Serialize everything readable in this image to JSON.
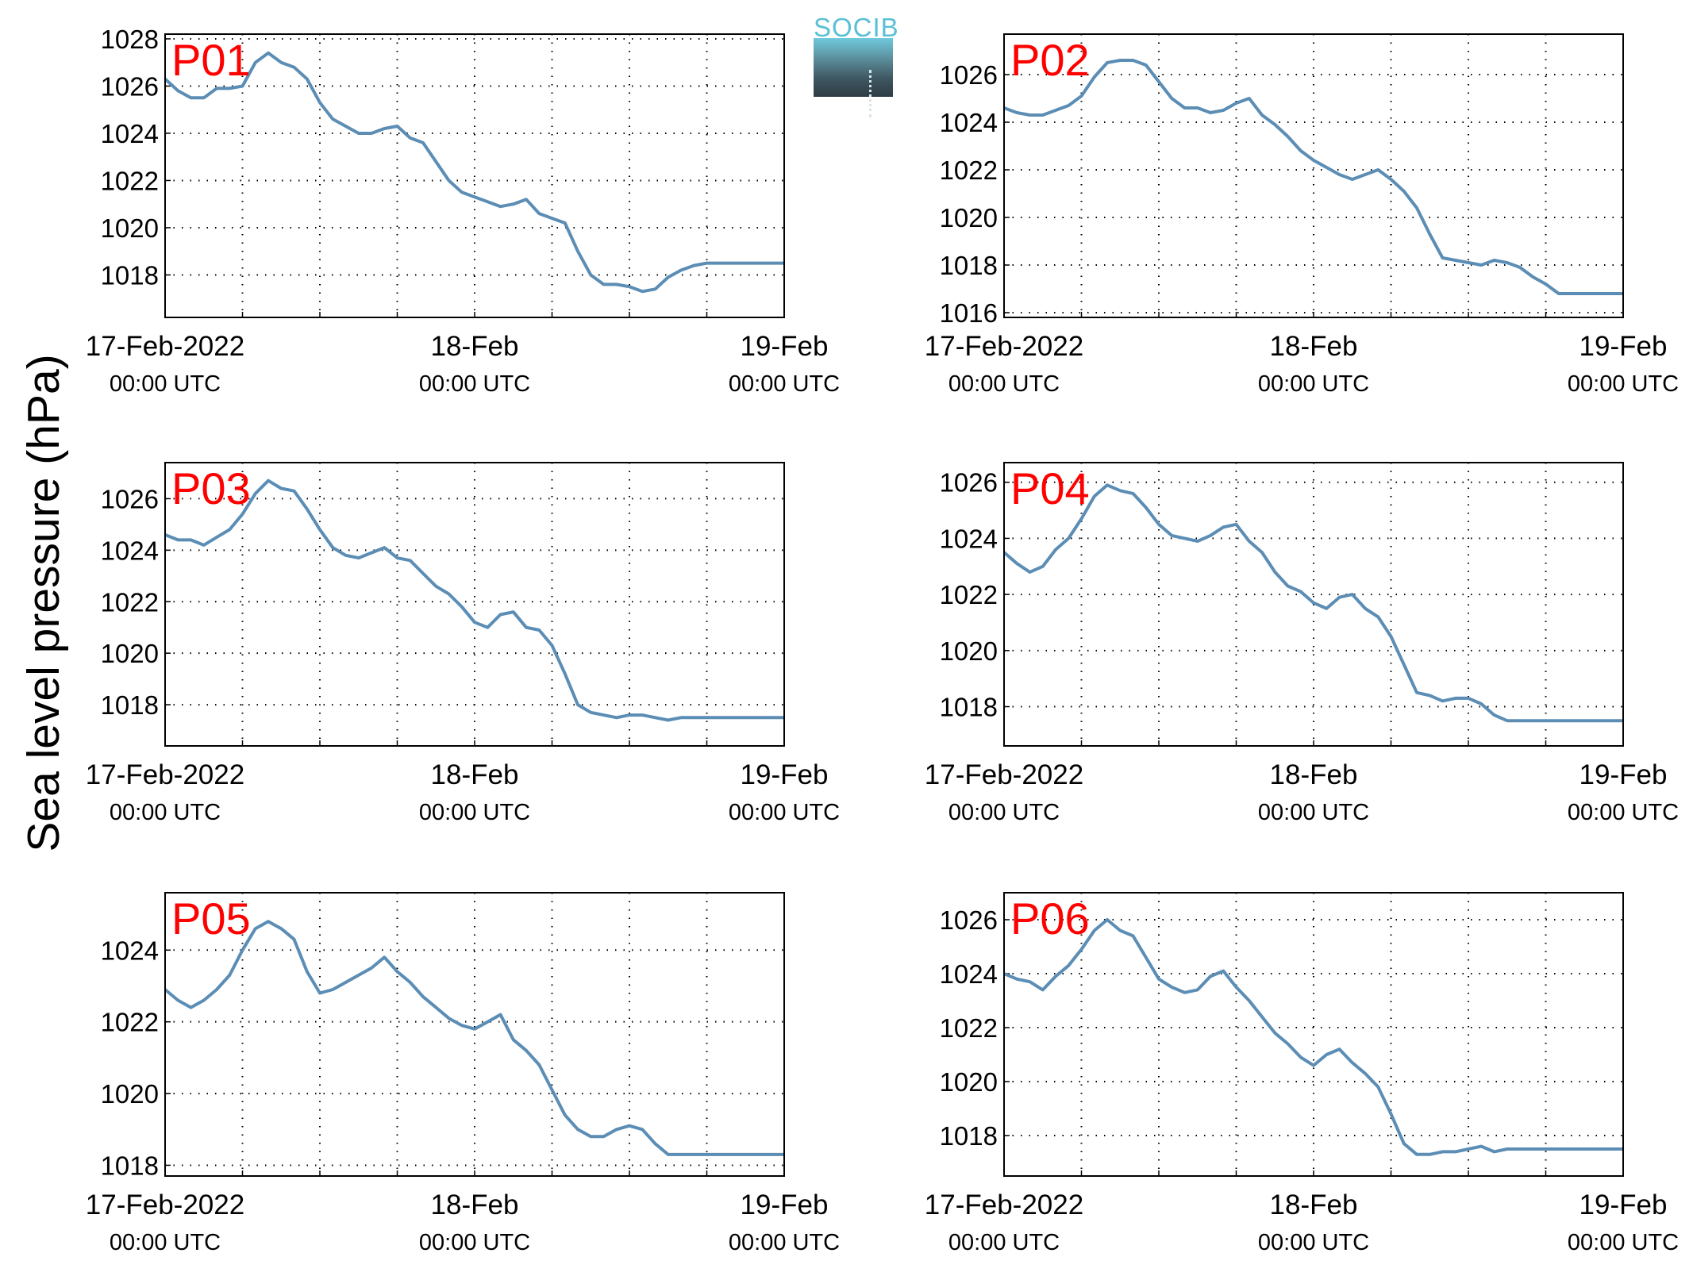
{
  "figure": {
    "ylabel": "Sea level pressure (hPa)",
    "logo_text": "SOCIB",
    "line_color": "#5b8db5",
    "label_color": "#ff0000"
  },
  "chart_data": [
    {
      "type": "line",
      "label": "P01",
      "x_tick_labels": [
        {
          "date": "17-Feb-2022",
          "time": "00:00 UTC"
        },
        {
          "date": "18-Feb",
          "time": "00:00 UTC"
        },
        {
          "date": "19-Feb",
          "time": "00:00 UTC"
        }
      ],
      "x_range_hours": [
        0,
        48
      ],
      "ylim": [
        1016.2,
        1028.2
      ],
      "yticks": [
        1018,
        1020,
        1022,
        1024,
        1026,
        1028
      ],
      "grid": true,
      "x_hours": [
        0,
        1,
        2,
        3,
        4,
        5,
        6,
        7,
        8,
        9,
        10,
        11,
        12,
        13,
        14,
        15,
        16,
        17,
        18,
        19,
        20,
        21,
        22,
        23,
        24,
        25,
        26,
        27,
        28,
        29,
        30,
        31,
        32,
        33,
        34,
        35,
        36,
        37,
        38,
        39,
        40,
        41,
        42,
        43,
        44,
        45,
        46,
        47,
        48
      ],
      "values": [
        1026.3,
        1025.8,
        1025.5,
        1025.5,
        1025.9,
        1025.9,
        1026.0,
        1027.0,
        1027.4,
        1027.0,
        1026.8,
        1026.3,
        1025.3,
        1024.6,
        1024.3,
        1024.0,
        1024.0,
        1024.2,
        1024.3,
        1023.8,
        1023.6,
        1022.8,
        1022.0,
        1021.5,
        1021.3,
        1021.1,
        1020.9,
        1021.0,
        1021.2,
        1020.6,
        1020.4,
        1020.2,
        1019.0,
        1018.0,
        1017.6,
        1017.6,
        1017.5,
        1017.3,
        1017.4,
        1017.9,
        1018.2,
        1018.4,
        1018.5,
        1018.5,
        1018.5,
        1018.5,
        1018.5,
        1018.5,
        1018.5
      ]
    },
    {
      "type": "line",
      "label": "P02",
      "x_tick_labels": [
        {
          "date": "17-Feb-2022",
          "time": "00:00 UTC"
        },
        {
          "date": "18-Feb",
          "time": "00:00 UTC"
        },
        {
          "date": "19-Feb",
          "time": "00:00 UTC"
        }
      ],
      "x_range_hours": [
        0,
        48
      ],
      "ylim": [
        1015.8,
        1027.7
      ],
      "yticks": [
        1016,
        1018,
        1020,
        1022,
        1024,
        1026
      ],
      "grid": true,
      "x_hours": [
        0,
        1,
        2,
        3,
        4,
        5,
        6,
        7,
        8,
        9,
        10,
        11,
        12,
        13,
        14,
        15,
        16,
        17,
        18,
        19,
        20,
        21,
        22,
        23,
        24,
        25,
        26,
        27,
        28,
        29,
        30,
        31,
        32,
        33,
        34,
        35,
        36,
        37,
        38,
        39,
        40,
        41,
        42,
        43,
        44,
        45,
        46,
        47,
        48
      ],
      "values": [
        1024.6,
        1024.4,
        1024.3,
        1024.3,
        1024.5,
        1024.7,
        1025.1,
        1025.9,
        1026.5,
        1026.6,
        1026.6,
        1026.4,
        1025.7,
        1025.0,
        1024.6,
        1024.6,
        1024.4,
        1024.5,
        1024.8,
        1025.0,
        1024.3,
        1023.9,
        1023.4,
        1022.8,
        1022.4,
        1022.1,
        1021.8,
        1021.6,
        1021.8,
        1022.0,
        1021.6,
        1021.1,
        1020.4,
        1019.3,
        1018.3,
        1018.2,
        1018.1,
        1018.0,
        1018.2,
        1018.1,
        1017.9,
        1017.5,
        1017.2,
        1016.8,
        1016.8,
        1016.8,
        1016.8,
        1016.8,
        1016.8
      ]
    },
    {
      "type": "line",
      "label": "P03",
      "x_tick_labels": [
        {
          "date": "17-Feb-2022",
          "time": "00:00 UTC"
        },
        {
          "date": "18-Feb",
          "time": "00:00 UTC"
        },
        {
          "date": "19-Feb",
          "time": "00:00 UTC"
        }
      ],
      "x_range_hours": [
        0,
        48
      ],
      "ylim": [
        1016.4,
        1027.4
      ],
      "yticks": [
        1018,
        1020,
        1022,
        1024,
        1026
      ],
      "grid": true,
      "x_hours": [
        0,
        1,
        2,
        3,
        4,
        5,
        6,
        7,
        8,
        9,
        10,
        11,
        12,
        13,
        14,
        15,
        16,
        17,
        18,
        19,
        20,
        21,
        22,
        23,
        24,
        25,
        26,
        27,
        28,
        29,
        30,
        31,
        32,
        33,
        34,
        35,
        36,
        37,
        38,
        39,
        40,
        41,
        42,
        43,
        44,
        45,
        46,
        47,
        48
      ],
      "values": [
        1024.6,
        1024.4,
        1024.4,
        1024.2,
        1024.5,
        1024.8,
        1025.4,
        1026.2,
        1026.7,
        1026.4,
        1026.3,
        1025.6,
        1024.8,
        1024.1,
        1023.8,
        1023.7,
        1023.9,
        1024.1,
        1023.7,
        1023.6,
        1023.1,
        1022.6,
        1022.3,
        1021.8,
        1021.2,
        1021.0,
        1021.5,
        1021.6,
        1021.0,
        1020.9,
        1020.3,
        1019.2,
        1018.0,
        1017.7,
        1017.6,
        1017.5,
        1017.6,
        1017.6,
        1017.5,
        1017.4,
        1017.5,
        1017.5,
        1017.5,
        1017.5,
        1017.5,
        1017.5,
        1017.5,
        1017.5,
        1017.5
      ]
    },
    {
      "type": "line",
      "label": "P04",
      "x_tick_labels": [
        {
          "date": "17-Feb-2022",
          "time": "00:00 UTC"
        },
        {
          "date": "18-Feb",
          "time": "00:00 UTC"
        },
        {
          "date": "19-Feb",
          "time": "00:00 UTC"
        }
      ],
      "x_range_hours": [
        0,
        48
      ],
      "ylim": [
        1016.6,
        1026.7
      ],
      "yticks": [
        1018,
        1020,
        1022,
        1024,
        1026
      ],
      "grid": true,
      "x_hours": [
        0,
        1,
        2,
        3,
        4,
        5,
        6,
        7,
        8,
        9,
        10,
        11,
        12,
        13,
        14,
        15,
        16,
        17,
        18,
        19,
        20,
        21,
        22,
        23,
        24,
        25,
        26,
        27,
        28,
        29,
        30,
        31,
        32,
        33,
        34,
        35,
        36,
        37,
        38,
        39,
        40,
        41,
        42,
        43,
        44,
        45,
        46,
        47,
        48
      ],
      "values": [
        1023.5,
        1023.1,
        1022.8,
        1023.0,
        1023.6,
        1024.0,
        1024.7,
        1025.5,
        1025.9,
        1025.7,
        1025.6,
        1025.1,
        1024.5,
        1024.1,
        1024.0,
        1023.9,
        1024.1,
        1024.4,
        1024.5,
        1023.9,
        1023.5,
        1022.8,
        1022.3,
        1022.1,
        1021.7,
        1021.5,
        1021.9,
        1022.0,
        1021.5,
        1021.2,
        1020.5,
        1019.5,
        1018.5,
        1018.4,
        1018.2,
        1018.3,
        1018.3,
        1018.1,
        1017.7,
        1017.5,
        1017.5,
        1017.5,
        1017.5,
        1017.5,
        1017.5,
        1017.5,
        1017.5,
        1017.5,
        1017.5
      ]
    },
    {
      "type": "line",
      "label": "P05",
      "x_tick_labels": [
        {
          "date": "17-Feb-2022",
          "time": "00:00 UTC"
        },
        {
          "date": "18-Feb",
          "time": "00:00 UTC"
        },
        {
          "date": "19-Feb",
          "time": "00:00 UTC"
        }
      ],
      "x_range_hours": [
        0,
        48
      ],
      "ylim": [
        1017.7,
        1025.6
      ],
      "yticks": [
        1018,
        1020,
        1022,
        1024
      ],
      "grid": true,
      "x_hours": [
        0,
        1,
        2,
        3,
        4,
        5,
        6,
        7,
        8,
        9,
        10,
        11,
        12,
        13,
        14,
        15,
        16,
        17,
        18,
        19,
        20,
        21,
        22,
        23,
        24,
        25,
        26,
        27,
        28,
        29,
        30,
        31,
        32,
        33,
        34,
        35,
        36,
        37,
        38,
        39,
        40,
        41,
        42,
        43,
        44,
        45,
        46,
        47,
        48
      ],
      "values": [
        1022.9,
        1022.6,
        1022.4,
        1022.6,
        1022.9,
        1023.3,
        1024.0,
        1024.6,
        1024.8,
        1024.6,
        1024.3,
        1023.4,
        1022.8,
        1022.9,
        1023.1,
        1023.3,
        1023.5,
        1023.8,
        1023.4,
        1023.1,
        1022.7,
        1022.4,
        1022.1,
        1021.9,
        1021.8,
        1022.0,
        1022.2,
        1021.5,
        1021.2,
        1020.8,
        1020.1,
        1019.4,
        1019.0,
        1018.8,
        1018.8,
        1019.0,
        1019.1,
        1019.0,
        1018.6,
        1018.3,
        1018.3,
        1018.3,
        1018.3,
        1018.3,
        1018.3,
        1018.3,
        1018.3,
        1018.3,
        1018.3
      ]
    },
    {
      "type": "line",
      "label": "P06",
      "x_tick_labels": [
        {
          "date": "17-Feb-2022",
          "time": "00:00 UTC"
        },
        {
          "date": "18-Feb",
          "time": "00:00 UTC"
        },
        {
          "date": "19-Feb",
          "time": "00:00 UTC"
        }
      ],
      "x_range_hours": [
        0,
        48
      ],
      "ylim": [
        1016.5,
        1027.0
      ],
      "yticks": [
        1018,
        1020,
        1022,
        1024,
        1026
      ],
      "grid": true,
      "x_hours": [
        0,
        1,
        2,
        3,
        4,
        5,
        6,
        7,
        8,
        9,
        10,
        11,
        12,
        13,
        14,
        15,
        16,
        17,
        18,
        19,
        20,
        21,
        22,
        23,
        24,
        25,
        26,
        27,
        28,
        29,
        30,
        31,
        32,
        33,
        34,
        35,
        36,
        37,
        38,
        39,
        40,
        41,
        42,
        43,
        44,
        45,
        46,
        47,
        48
      ],
      "values": [
        1024.0,
        1023.8,
        1023.7,
        1023.4,
        1023.9,
        1024.3,
        1024.9,
        1025.6,
        1026.0,
        1025.6,
        1025.4,
        1024.6,
        1023.8,
        1023.5,
        1023.3,
        1023.4,
        1023.9,
        1024.1,
        1023.5,
        1023.0,
        1022.4,
        1021.8,
        1021.4,
        1020.9,
        1020.6,
        1021.0,
        1021.2,
        1020.7,
        1020.3,
        1019.8,
        1018.8,
        1017.7,
        1017.3,
        1017.3,
        1017.4,
        1017.4,
        1017.5,
        1017.6,
        1017.4,
        1017.5,
        1017.5,
        1017.5,
        1017.5,
        1017.5,
        1017.5,
        1017.5,
        1017.5,
        1017.5,
        1017.5
      ]
    }
  ]
}
